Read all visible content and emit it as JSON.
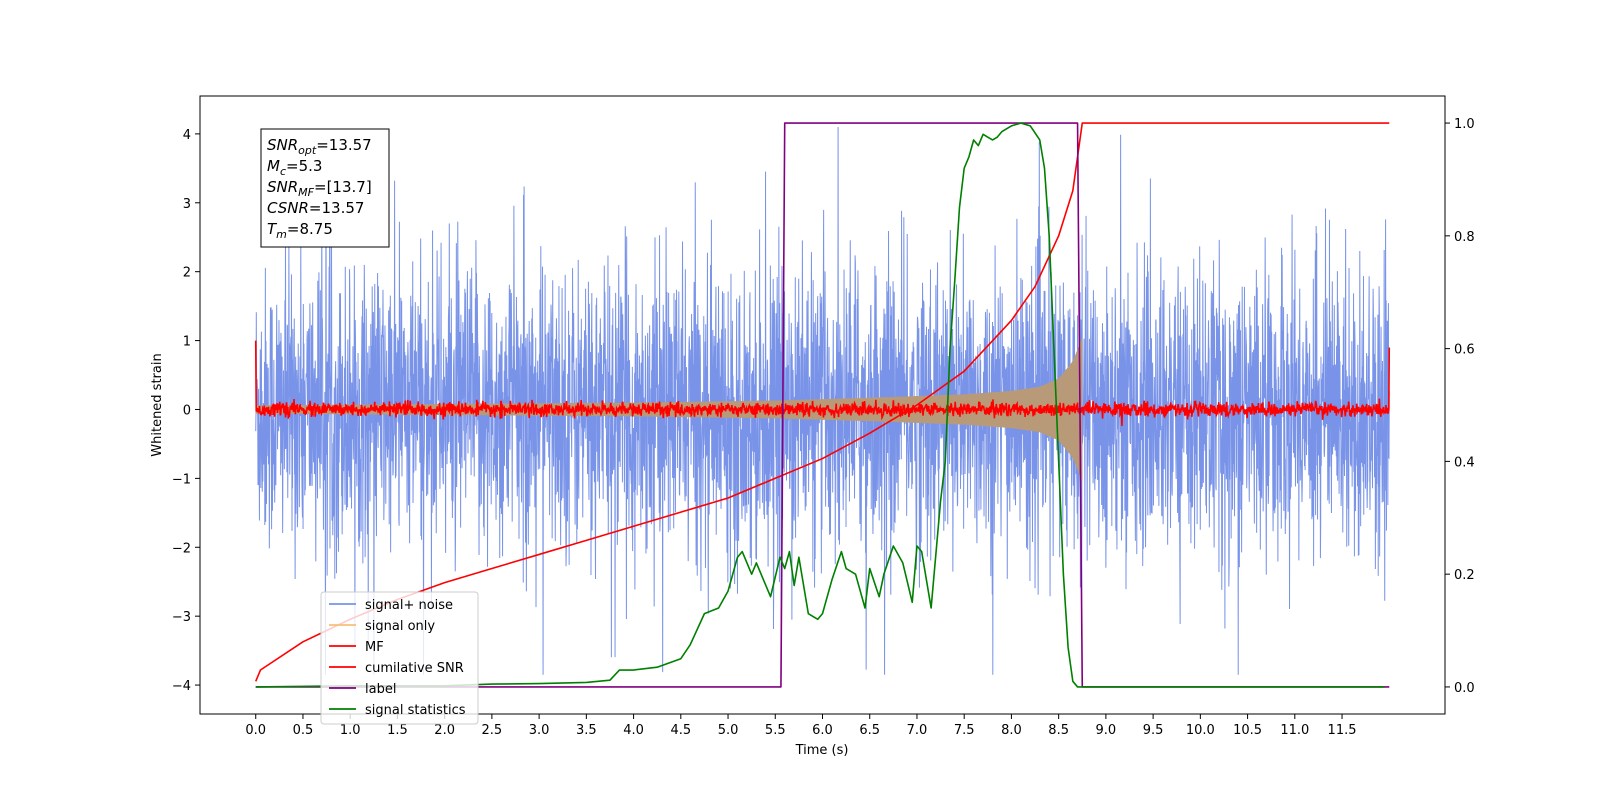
{
  "chart_data": {
    "type": "line",
    "title": "",
    "xlabel": "Time (s)",
    "ylabel": "Whitened strain",
    "y2label": "",
    "xlim": [
      -0.59,
      12.59
    ],
    "ylim": [
      -4.42,
      4.55
    ],
    "y2lim": [
      -0.048,
      1.048
    ],
    "xticks": [
      0.0,
      0.5,
      1.0,
      1.5,
      2.0,
      2.5,
      3.0,
      3.5,
      4.0,
      4.5,
      5.0,
      5.5,
      6.0,
      6.5,
      7.0,
      7.5,
      8.0,
      8.5,
      9.0,
      9.5,
      10.0,
      10.5,
      11.0,
      11.5
    ],
    "xtick_labels": [
      "0.0",
      "0.5",
      "1.0",
      "1.5",
      "2.0",
      "2.5",
      "3.0",
      "3.5",
      "4.0",
      "4.5",
      "5.0",
      "5.5",
      "6.0",
      "6.5",
      "7.0",
      "7.5",
      "8.0",
      "8.5",
      "9.0",
      "9.5",
      "10.0",
      "10.5",
      "11.0",
      "11.5"
    ],
    "yticks": [
      -4,
      -3,
      -2,
      -1,
      0,
      1,
      2,
      3,
      4
    ],
    "ytick_labels": [
      "−4",
      "−3",
      "−2",
      "−1",
      "0",
      "1",
      "2",
      "3",
      "4"
    ],
    "y2ticks": [
      0.0,
      0.2,
      0.4,
      0.6,
      0.8,
      1.0
    ],
    "y2tick_labels": [
      "0.0",
      "0.2",
      "0.4",
      "0.6",
      "0.8",
      "1.0"
    ],
    "grid": false,
    "legend_position": "lower-left",
    "info_box": [
      {
        "base": "SNR",
        "sub": "opt",
        "rest": "=13.57"
      },
      {
        "base": "M",
        "sub": "c",
        "rest": "=5.3"
      },
      {
        "base": "SNR",
        "sub": "MF",
        "rest": "=[13.7]"
      },
      {
        "base": "CSNR",
        "sub": "",
        "rest": "=13.57"
      },
      {
        "base": "T",
        "sub": "m",
        "rest": "=8.75"
      }
    ],
    "series": [
      {
        "name": "signal+ noise",
        "color": "#7893e8",
        "axis": "left",
        "style": "noise",
        "x_range": [
          0.0,
          12.0
        ],
        "typical_amplitude": 1.3,
        "peak_max": 4.1,
        "peak_min": -3.85
      },
      {
        "name": "signal only",
        "color": "#f5c078",
        "fill_color": "#b99a78",
        "axis": "left",
        "style": "chirp-envelope",
        "x_range": [
          0.0,
          8.75
        ],
        "envelope": {
          "x": [
            0.0,
            2.0,
            4.0,
            5.5,
            6.5,
            7.5,
            8.0,
            8.3,
            8.5,
            8.65,
            8.75
          ],
          "amp": [
            0.06,
            0.08,
            0.1,
            0.13,
            0.17,
            0.22,
            0.27,
            0.33,
            0.45,
            0.7,
            1.05
          ]
        }
      },
      {
        "name": "MF",
        "color": "#ff0000",
        "axis": "left",
        "style": "noise-small",
        "x_range": [
          0.0,
          12.0
        ],
        "edge_start": 1.0,
        "edge_end": 0.9,
        "typical_amplitude": 0.05
      },
      {
        "name": "cumilative SNR",
        "color": "#ff0000",
        "axis": "right",
        "style": "line",
        "x": [
          0.0,
          0.05,
          0.5,
          1.0,
          1.5,
          2.0,
          2.5,
          3.0,
          3.5,
          4.0,
          4.5,
          5.0,
          5.5,
          6.0,
          6.5,
          7.0,
          7.5,
          8.0,
          8.25,
          8.5,
          8.65,
          8.75,
          12.0
        ],
        "y": [
          0.01,
          0.03,
          0.08,
          0.12,
          0.155,
          0.185,
          0.21,
          0.235,
          0.26,
          0.285,
          0.31,
          0.335,
          0.37,
          0.405,
          0.45,
          0.5,
          0.56,
          0.65,
          0.71,
          0.8,
          0.88,
          1.0,
          1.0
        ]
      },
      {
        "name": "label",
        "color": "#800080",
        "axis": "right",
        "style": "step",
        "x": [
          0.0,
          5.56,
          5.6,
          8.7,
          8.75,
          12.0
        ],
        "y": [
          0.0,
          0.0,
          1.0,
          1.0,
          0.0,
          0.0
        ]
      },
      {
        "name": "signal statistics",
        "color": "#008000",
        "axis": "right",
        "style": "line",
        "x": [
          0.0,
          1.0,
          2.0,
          2.5,
          3.0,
          3.5,
          3.75,
          3.85,
          4.0,
          4.25,
          4.5,
          4.6,
          4.75,
          4.9,
          5.0,
          5.1,
          5.15,
          5.25,
          5.3,
          5.45,
          5.55,
          5.6,
          5.65,
          5.7,
          5.75,
          5.85,
          5.95,
          6.0,
          6.1,
          6.2,
          6.25,
          6.35,
          6.45,
          6.5,
          6.6,
          6.65,
          6.75,
          6.85,
          6.95,
          7.0,
          7.05,
          7.15,
          7.25,
          7.3,
          7.35,
          7.4,
          7.45,
          7.5,
          7.55,
          7.6,
          7.65,
          7.7,
          7.75,
          7.8,
          7.85,
          7.9,
          8.0,
          8.1,
          8.2,
          8.3,
          8.35,
          8.4,
          8.45,
          8.5,
          8.55,
          8.6,
          8.65,
          8.7,
          8.75,
          11.0,
          11.95
        ],
        "y": [
          0.0,
          0.002,
          0.002,
          0.005,
          0.006,
          0.008,
          0.012,
          0.03,
          0.03,
          0.035,
          0.05,
          0.075,
          0.13,
          0.14,
          0.17,
          0.23,
          0.24,
          0.2,
          0.22,
          0.16,
          0.23,
          0.21,
          0.24,
          0.18,
          0.23,
          0.13,
          0.12,
          0.13,
          0.19,
          0.24,
          0.21,
          0.2,
          0.14,
          0.21,
          0.16,
          0.2,
          0.25,
          0.22,
          0.15,
          0.25,
          0.24,
          0.14,
          0.33,
          0.4,
          0.6,
          0.72,
          0.85,
          0.92,
          0.94,
          0.97,
          0.96,
          0.98,
          0.975,
          0.97,
          0.975,
          0.985,
          0.995,
          1.0,
          0.995,
          0.97,
          0.92,
          0.8,
          0.6,
          0.4,
          0.2,
          0.07,
          0.01,
          0.0,
          0.0,
          0.0,
          0.0
        ]
      }
    ]
  }
}
